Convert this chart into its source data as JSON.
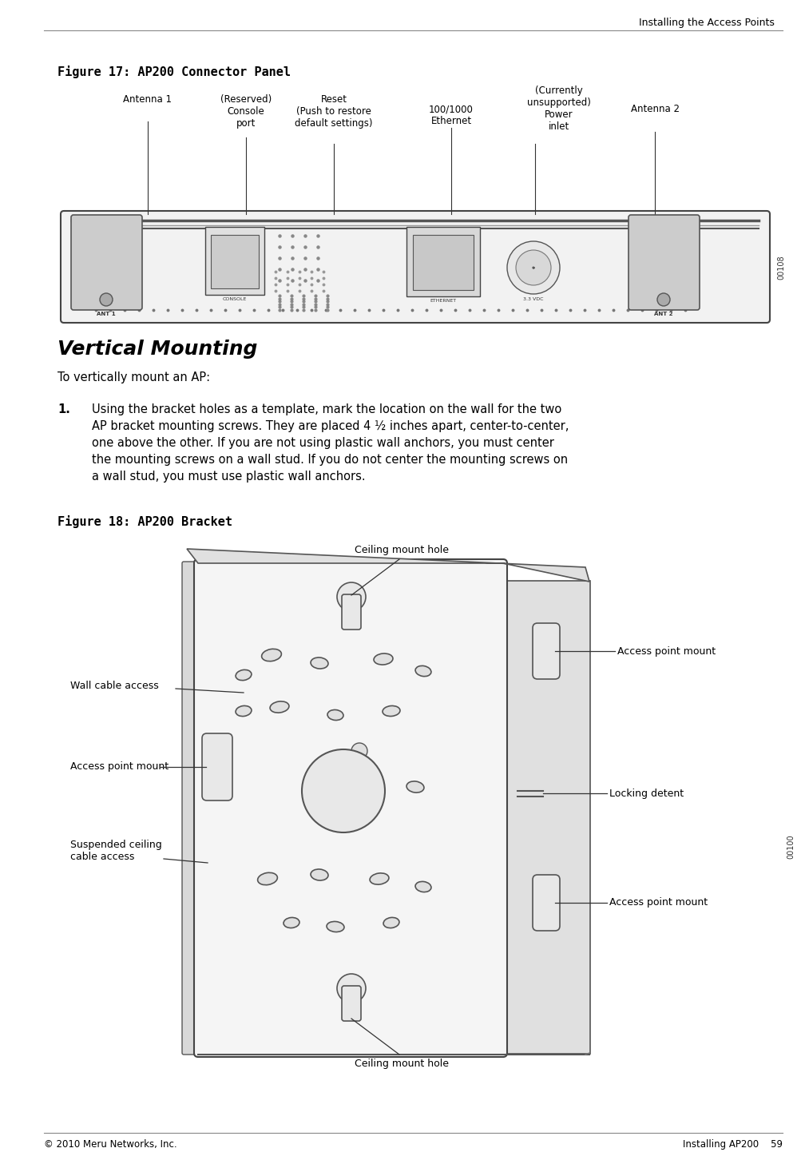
{
  "page_title": "Installing the Access Points",
  "fig17_title": "Figure 17: AP200 Connector Panel",
  "fig18_title": "Figure 18: AP200 Bracket",
  "section_title": "Vertical Mounting",
  "intro_text": "To vertically mount an AP:",
  "step1_label": "1.",
  "step1_text": "Using the bracket holes as a template, mark the location on the wall for the two\nAP bracket mounting screws. They are placed 4 ½ inches apart, center-to-center,\none above the other. If you are not using plastic wall anchors, you must center\nthe mounting screws on a wall stud. If you do not center the mounting screws on\na wall stud, you must use plastic wall anchors.",
  "footer_left": "© 2010 Meru Networks, Inc.",
  "footer_right": "Installing AP200    59",
  "bg_color": "#ffffff",
  "text_color": "#000000"
}
